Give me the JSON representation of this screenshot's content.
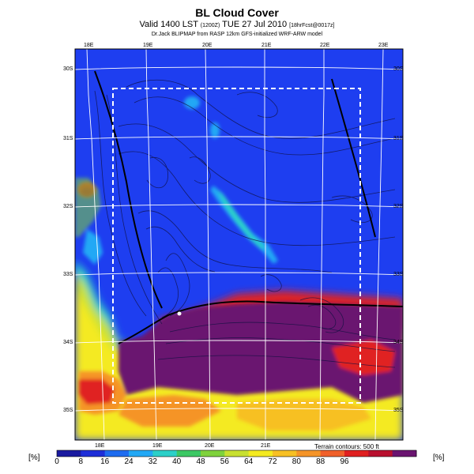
{
  "header": {
    "title": "BL Cloud Cover",
    "valid_line": "Valid 1400 LST",
    "valid_code": "(1200Z)",
    "valid_date": "TUE 27 Jul 2010",
    "forecast_code": "[18hrFcst@0017z]",
    "credit": "Dr.Jack BLIPMAP from RASP 12km GFS-initialized WRF-ARW model"
  },
  "map": {
    "lon_labels_top": [
      "18E",
      "19E",
      "20E",
      "21E",
      "22E",
      "23E"
    ],
    "lon_labels_bottom": [
      "18E",
      "19E",
      "20E",
      "21E"
    ],
    "lat_labels_left": [
      "30S",
      "31S",
      "32S",
      "33S",
      "34S",
      "35S"
    ],
    "lat_labels_right": [
      "30S",
      "31S",
      "32S",
      "33S",
      "34S",
      "35S"
    ],
    "contour_note": "Terrain contours: 500 ft"
  },
  "colorbar": {
    "unit_left": "[%]",
    "unit_right": "[%]",
    "labels": [
      "0",
      "8",
      "16",
      "24",
      "32",
      "40",
      "48",
      "56",
      "64",
      "72",
      "80",
      "88",
      "96"
    ],
    "colors": [
      "#1a1aa0",
      "#1e2ed8",
      "#1e6cf0",
      "#22a8f5",
      "#2cd0c8",
      "#3cc864",
      "#7fd23c",
      "#c8e030",
      "#f4ea20",
      "#f7c024",
      "#f59428",
      "#f0602a",
      "#e02020",
      "#b8102e",
      "#6a1470"
    ]
  },
  "icons": {
    "city_marker": "city-marker-icon"
  }
}
